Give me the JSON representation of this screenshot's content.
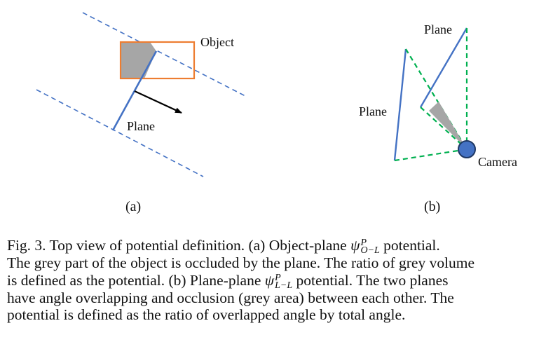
{
  "panel_a": {
    "object_label": "Object",
    "plane_label": "Plane",
    "sublabel": "(a)"
  },
  "panel_b": {
    "plane_top_label": "Plane",
    "plane_left_label": "Plane",
    "camera_label": "Camera",
    "sublabel": "(b)"
  },
  "colors": {
    "dashed_blue": "#4472c4",
    "plane_blue": "#4472c4",
    "object_orange": "#ed7d31",
    "grey_fill": "#a6a6a6",
    "green_dashed": "#00b050",
    "camera_fill": "#4472c4",
    "arrow_black": "#000000"
  },
  "caption": {
    "line1_a": "Fig. 3.  Top view of potential definition. (a) Object-plane ",
    "psi_symbol": "ψ",
    "sup1": "P",
    "sub1": "O−L",
    "line1_b": " potential.",
    "line2": "The grey part of the object is occluded by the plane. The ratio of grey volume",
    "line3_a": "is defined as the potential. (b) Plane-plane ",
    "sup2": "P",
    "sub2": "L−L",
    "line3_b": " potential. The two planes",
    "line4": "have angle overlapping and occlusion (grey area) between each other. The",
    "line5": "potential is defined as the ratio of overlapped angle by total angle."
  }
}
